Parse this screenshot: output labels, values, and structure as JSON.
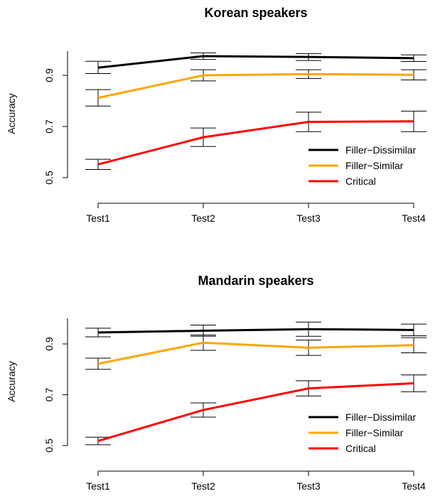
{
  "chart_data": [
    {
      "type": "line",
      "title": "Korean speakers",
      "xlabel": "",
      "ylabel": "Accuracy",
      "categories": [
        "Test1",
        "Test2",
        "Test3",
        "Test4"
      ],
      "yticks": [
        "0.5",
        "0.7",
        "0.9"
      ],
      "ylim": [
        0.5,
        1.0
      ],
      "grid": false,
      "legend_position": "bottom-right",
      "series": [
        {
          "name": "Filler−Dissimilar",
          "color": "#000000",
          "values": [
            0.93,
            0.975,
            0.972,
            0.967
          ],
          "lower": [
            0.907,
            0.962,
            0.958,
            0.954
          ],
          "upper": [
            0.955,
            0.988,
            0.985,
            0.98
          ]
        },
        {
          "name": "Filler−Similar",
          "color": "#FFA500",
          "values": [
            0.812,
            0.9,
            0.905,
            0.902
          ],
          "lower": [
            0.78,
            0.878,
            0.888,
            0.882
          ],
          "upper": [
            0.844,
            0.922,
            0.922,
            0.922
          ]
        },
        {
          "name": "Critical",
          "color": "#FF0000",
          "values": [
            0.552,
            0.658,
            0.718,
            0.72
          ],
          "lower": [
            0.532,
            0.622,
            0.68,
            0.68
          ],
          "upper": [
            0.572,
            0.694,
            0.756,
            0.76
          ]
        }
      ]
    },
    {
      "type": "line",
      "title": "Mandarin speakers",
      "xlabel": "",
      "ylabel": "Accuracy",
      "categories": [
        "Test1",
        "Test2",
        "Test3",
        "Test4"
      ],
      "yticks": [
        "0.5",
        "0.7",
        "0.9"
      ],
      "ylim": [
        0.5,
        1.0
      ],
      "grid": false,
      "legend_position": "bottom-right",
      "series": [
        {
          "name": "Filler−Dissimilar",
          "color": "#000000",
          "values": [
            0.945,
            0.952,
            0.958,
            0.955
          ],
          "lower": [
            0.928,
            0.93,
            0.93,
            0.932
          ],
          "upper": [
            0.962,
            0.974,
            0.986,
            0.978
          ]
        },
        {
          "name": "Filler−Similar",
          "color": "#FFA500",
          "values": [
            0.822,
            0.905,
            0.885,
            0.895
          ],
          "lower": [
            0.8,
            0.875,
            0.855,
            0.865
          ],
          "upper": [
            0.844,
            0.935,
            0.915,
            0.925
          ]
        },
        {
          "name": "Critical",
          "color": "#FF0000",
          "values": [
            0.518,
            0.64,
            0.725,
            0.745
          ],
          "lower": [
            0.503,
            0.612,
            0.695,
            0.712
          ],
          "upper": [
            0.533,
            0.668,
            0.755,
            0.778
          ]
        }
      ]
    }
  ]
}
